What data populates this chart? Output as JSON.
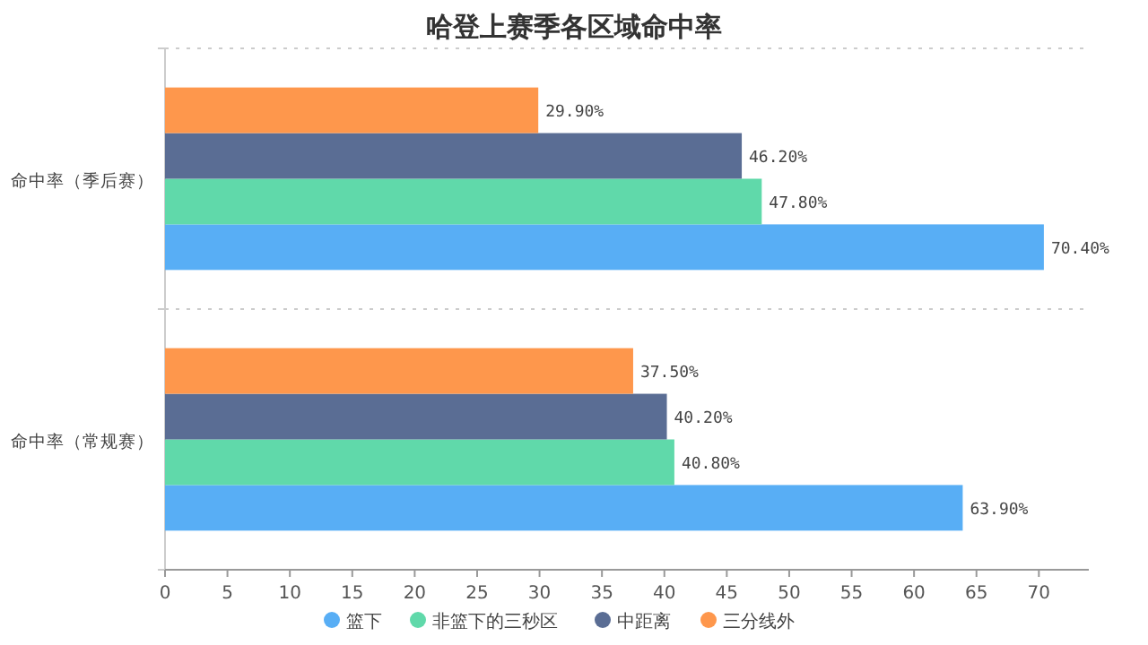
{
  "chart_data": {
    "type": "bar",
    "orientation": "horizontal",
    "title": "哈登上赛季各区域命中率",
    "categories": [
      "命中率（季后赛）",
      "命中率（常规赛）"
    ],
    "series": [
      {
        "name": "篮下",
        "color": "#58aef5",
        "values": [
          70.4,
          63.9
        ],
        "value_labels": [
          "70.40%",
          "63.90%"
        ]
      },
      {
        "name": "非篮下的三秒区",
        "color": "#60d9aa",
        "values": [
          47.8,
          40.8
        ],
        "value_labels": [
          "47.80%",
          "40.80%"
        ]
      },
      {
        "name": "中距离",
        "color": "#5a6d94",
        "values": [
          46.2,
          40.2
        ],
        "value_labels": [
          "46.20%",
          "40.20%"
        ]
      },
      {
        "name": "三分线外",
        "color": "#fe974c",
        "values": [
          29.9,
          37.5
        ],
        "value_labels": [
          "29.90%",
          "37.50%"
        ]
      }
    ],
    "xlim": [
      0,
      74
    ],
    "xticks": [
      0,
      5,
      10,
      15,
      20,
      25,
      30,
      35,
      40,
      45,
      50,
      55,
      60,
      65,
      70
    ],
    "grid": "y",
    "legend": "bottom",
    "marker": "circle"
  }
}
